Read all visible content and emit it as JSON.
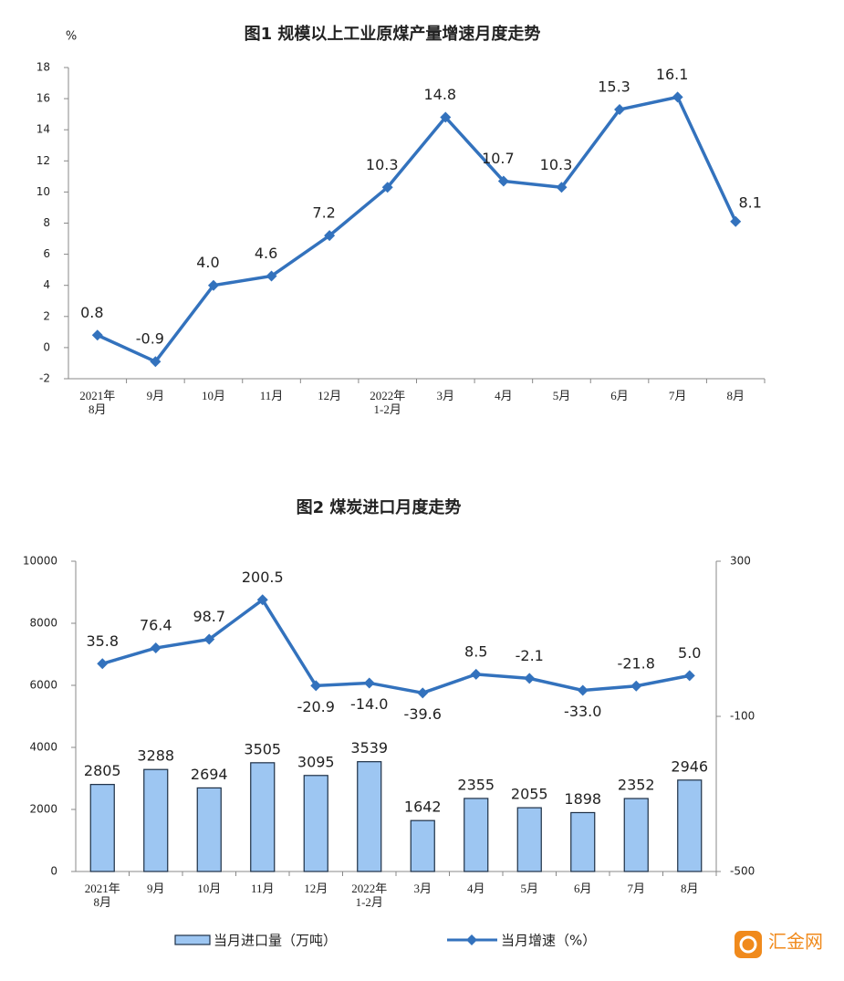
{
  "chart_data": [
    {
      "type": "line",
      "title": "图1  规模以上工业原煤产量增速月度走势",
      "y_label": "%",
      "categories": [
        "2021年\n8月",
        "9月",
        "10月",
        "11月",
        "12月",
        "2022年\n1-2月",
        "3月",
        "4月",
        "5月",
        "6月",
        "7月",
        "8月"
      ],
      "values": [
        0.8,
        -0.9,
        4.0,
        4.6,
        7.2,
        10.3,
        14.8,
        10.7,
        10.3,
        15.3,
        16.1,
        8.1
      ],
      "value_labels": [
        "0.8",
        "-0.9",
        "4.0",
        "4.6",
        "7.2",
        "10.3",
        "14.8",
        "10.7",
        "10.3",
        "15.3",
        "16.1",
        "8.1"
      ],
      "color": "#3372bd",
      "ylim": [
        -2,
        18
      ],
      "yticks": [
        -2,
        0,
        2,
        4,
        6,
        8,
        10,
        12,
        14,
        16,
        18
      ]
    },
    {
      "type": "bar_line",
      "title": "图2  煤炭进口月度走势",
      "categories": [
        "2021年\n8月",
        "9月",
        "10月",
        "11月",
        "12月",
        "2022年\n1-2月",
        "3月",
        "4月",
        "5月",
        "6月",
        "7月",
        "8月"
      ],
      "series": [
        {
          "name": "当月进口量（万吨）",
          "type": "bar",
          "color": "#9dc6f2",
          "values": [
            2805,
            3288,
            2694,
            3505,
            3095,
            3539,
            1642,
            2355,
            2055,
            1898,
            2352,
            2946
          ]
        },
        {
          "name": "当月增速（%）",
          "type": "line",
          "axis": "y2",
          "color": "#3372bd",
          "values": [
            35.8,
            76.4,
            98.7,
            200.5,
            -20.9,
            -14.0,
            -39.6,
            8.5,
            -2.1,
            -33.0,
            -21.8,
            5.0
          ],
          "value_labels": [
            "35.8",
            "76.4",
            "98.7",
            "200.5",
            "-20.9",
            "-14.0",
            "-39.6",
            "8.5",
            "-2.1",
            "-33.0",
            "-21.8",
            "5.0"
          ]
        }
      ],
      "ylim": [
        0,
        10000
      ],
      "yticks": [
        0,
        2000,
        4000,
        6000,
        8000,
        10000
      ],
      "y2lim": [
        -500,
        300
      ],
      "y2ticks": [
        -500,
        -100,
        300
      ]
    }
  ],
  "watermark": "汇金网"
}
